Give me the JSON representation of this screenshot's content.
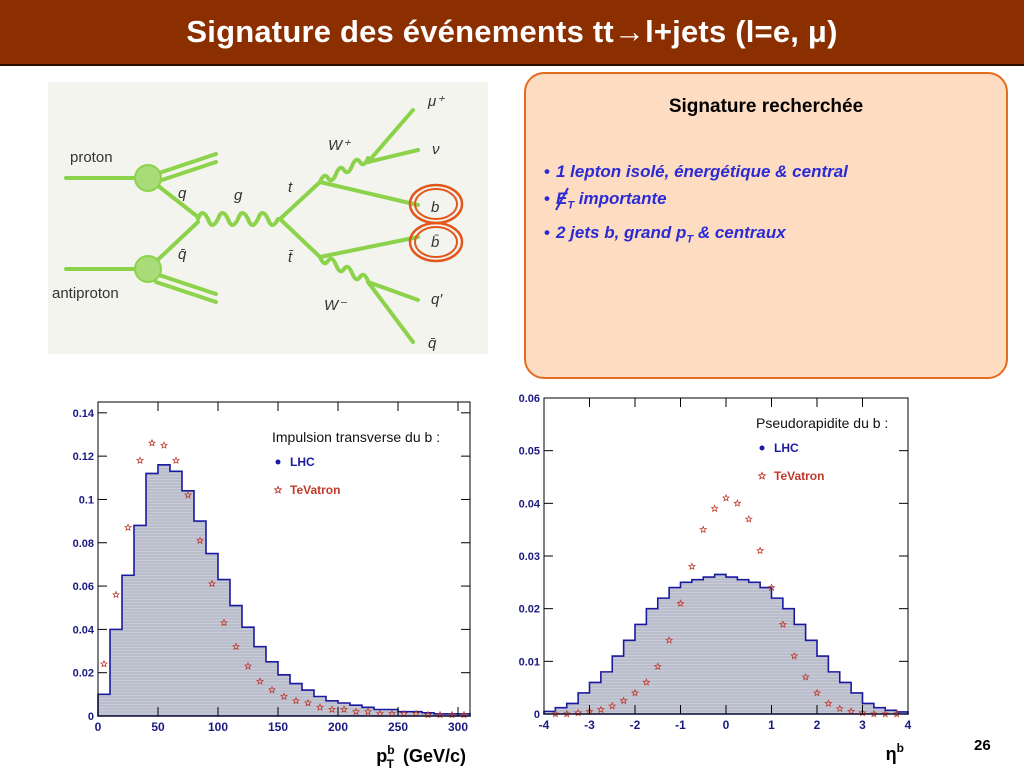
{
  "slide": {
    "title": "Signature des événements tt→l+jets (l=e, μ)",
    "page_number": "26"
  },
  "diagram": {
    "labels": {
      "proton": "proton",
      "antiproton": "antiproton",
      "q": "q",
      "qbar": "q̄",
      "g": "g",
      "t": "t",
      "tbar": "t̄",
      "wplus": "W⁺",
      "wminus": "W⁻",
      "mu": "μ⁺",
      "nu": "ν",
      "b": "b",
      "bbar": "b̄",
      "qprime": "q′",
      "qbar2": "q̄"
    },
    "highlight_color": "#e3561b",
    "line_color": "#8cd24a"
  },
  "signature": {
    "heading": "Signature recherchée",
    "items": [
      {
        "text": "1 lepton isolé, énergétique & central"
      },
      {
        "prefix": "E",
        "sub": "T",
        "text": " importante"
      },
      {
        "prefix": "2 jets b, grand p",
        "sub": "T",
        "text": " & centraux"
      }
    ],
    "text_color": "#2b2bd6"
  },
  "chart_data": [
    {
      "type": "histogram",
      "title": "Impulsion transverse du b :",
      "xlabel": "p_T^b (GeV/c)",
      "xlabel_main": "p",
      "xlabel_sup": "b",
      "xlabel_sub": "T",
      "xlabel_unit": "(GeV/c)",
      "xlim": [
        0,
        310
      ],
      "ylim": [
        0,
        0.145
      ],
      "xticks": [
        "0",
        "50",
        "100",
        "150",
        "200",
        "250",
        "300"
      ],
      "yticks": [
        "0",
        "0.02",
        "0.04",
        "0.06",
        "0.08",
        "0.1",
        "0.12",
        "0.14"
      ],
      "legend": [
        {
          "name": "LHC",
          "marker": "dot",
          "color": "#1a1aa0"
        },
        {
          "name": "TeVatron",
          "marker": "star",
          "color": "#c0392b"
        }
      ],
      "series": [
        {
          "name": "LHC",
          "style": "histogram",
          "x": [
            5,
            15,
            25,
            35,
            45,
            55,
            65,
            75,
            85,
            95,
            105,
            115,
            125,
            135,
            145,
            155,
            165,
            175,
            185,
            195,
            205,
            215,
            225,
            235,
            245,
            255,
            265,
            275,
            285,
            295,
            305
          ],
          "y": [
            0.01,
            0.04,
            0.065,
            0.088,
            0.112,
            0.116,
            0.113,
            0.104,
            0.09,
            0.075,
            0.063,
            0.051,
            0.041,
            0.032,
            0.025,
            0.019,
            0.015,
            0.012,
            0.009,
            0.007,
            0.006,
            0.005,
            0.004,
            0.003,
            0.003,
            0.002,
            0.002,
            0.0015,
            0.001,
            0.001,
            0.001
          ]
        },
        {
          "name": "TeVatron",
          "style": "star",
          "x": [
            5,
            15,
            25,
            35,
            45,
            55,
            65,
            75,
            85,
            95,
            105,
            115,
            125,
            135,
            145,
            155,
            165,
            175,
            185,
            195,
            205,
            215,
            225,
            235,
            245,
            255,
            265,
            275,
            285,
            295,
            305
          ],
          "y": [
            0.024,
            0.056,
            0.087,
            0.118,
            0.126,
            0.125,
            0.118,
            0.102,
            0.081,
            0.061,
            0.043,
            0.032,
            0.023,
            0.016,
            0.012,
            0.009,
            0.007,
            0.006,
            0.004,
            0.003,
            0.003,
            0.002,
            0.002,
            0.001,
            0.001,
            0.001,
            0.001,
            0.0005,
            0.0005,
            0.0005,
            0.0005
          ]
        }
      ]
    },
    {
      "type": "histogram",
      "title": "Pseudorapidite du b :",
      "xlabel": "η^b",
      "xlabel_main": "η",
      "xlabel_sup": "b",
      "xlim": [
        -4,
        4
      ],
      "ylim": [
        0,
        0.06
      ],
      "xticks": [
        "-4",
        "-3",
        "-2",
        "-1",
        "0",
        "1",
        "2",
        "3",
        "4"
      ],
      "yticks": [
        "0",
        "0.01",
        "0.02",
        "0.03",
        "0.04",
        "0.05",
        "0.06"
      ],
      "legend": [
        {
          "name": "LHC",
          "marker": "dot",
          "color": "#1a1aa0"
        },
        {
          "name": "TeVatron",
          "marker": "star",
          "color": "#c0392b"
        }
      ],
      "series": [
        {
          "name": "LHC",
          "style": "histogram",
          "x": [
            -3.875,
            -3.625,
            -3.375,
            -3.125,
            -2.875,
            -2.625,
            -2.375,
            -2.125,
            -1.875,
            -1.625,
            -1.375,
            -1.125,
            -0.875,
            -0.625,
            -0.375,
            -0.125,
            0.125,
            0.375,
            0.625,
            0.875,
            1.125,
            1.375,
            1.625,
            1.875,
            2.125,
            2.375,
            2.625,
            2.875,
            3.125,
            3.375,
            3.625,
            3.875
          ],
          "y": [
            0.0005,
            0.0012,
            0.002,
            0.004,
            0.006,
            0.008,
            0.011,
            0.014,
            0.017,
            0.02,
            0.022,
            0.024,
            0.025,
            0.0255,
            0.026,
            0.0265,
            0.026,
            0.0255,
            0.025,
            0.024,
            0.022,
            0.02,
            0.017,
            0.014,
            0.011,
            0.008,
            0.006,
            0.004,
            0.002,
            0.0012,
            0.0007,
            0.0004
          ]
        },
        {
          "name": "TeVatron",
          "style": "star",
          "x": [
            -3.75,
            -3.5,
            -3.25,
            -3.0,
            -2.75,
            -2.5,
            -2.25,
            -2.0,
            -1.75,
            -1.5,
            -1.25,
            -1.0,
            -0.75,
            -0.5,
            -0.25,
            0.0,
            0.25,
            0.5,
            0.75,
            1.0,
            1.25,
            1.5,
            1.75,
            2.0,
            2.25,
            2.5,
            2.75,
            3.0,
            3.25,
            3.5,
            3.75
          ],
          "y": [
            0.0,
            0.0,
            0.0002,
            0.0005,
            0.0008,
            0.0015,
            0.0025,
            0.004,
            0.006,
            0.009,
            0.014,
            0.021,
            0.028,
            0.035,
            0.039,
            0.041,
            0.04,
            0.037,
            0.031,
            0.024,
            0.017,
            0.011,
            0.007,
            0.004,
            0.002,
            0.001,
            0.0005,
            0.0002,
            0.0,
            0.0,
            0.0
          ]
        }
      ]
    }
  ]
}
